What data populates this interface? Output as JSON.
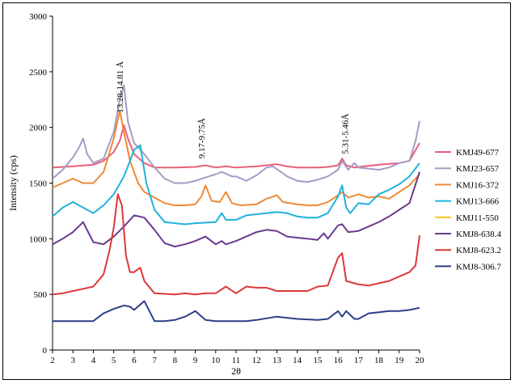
{
  "chart_data": {
    "type": "line",
    "title": "",
    "xlabel": "2θ",
    "ylabel": "Intensity (cps)",
    "xlim": [
      2,
      20
    ],
    "ylim": [
      0,
      3000
    ],
    "x_ticks": [
      2,
      3,
      4,
      5,
      6,
      7,
      8,
      9,
      10,
      11,
      12,
      13,
      14,
      15,
      16,
      17,
      18,
      19,
      20
    ],
    "y_ticks": [
      0,
      500,
      1000,
      1500,
      2000,
      2500,
      3000
    ],
    "grid": false,
    "legend_position": "right",
    "annotations": [
      {
        "text": "13.28-14.81 Å",
        "x": 5.45,
        "y": 2130
      },
      {
        "text": "9.17-9.75Å",
        "x": 9.45,
        "y": 1720
      },
      {
        "text": "5.31-5.46Å",
        "x": 16.5,
        "y": 1760
      }
    ],
    "series": [
      {
        "name": "KMJ49-677",
        "color": "#e8607a",
        "points": [
          [
            2,
            1640
          ],
          [
            3,
            1650
          ],
          [
            4,
            1665
          ],
          [
            4.5,
            1700
          ],
          [
            5,
            1780
          ],
          [
            5.3,
            1880
          ],
          [
            5.5,
            2020
          ],
          [
            5.7,
            1900
          ],
          [
            6,
            1760
          ],
          [
            6.5,
            1680
          ],
          [
            7,
            1640
          ],
          [
            8,
            1640
          ],
          [
            9,
            1645
          ],
          [
            9.5,
            1660
          ],
          [
            10,
            1640
          ],
          [
            10.5,
            1650
          ],
          [
            11,
            1640
          ],
          [
            12,
            1650
          ],
          [
            13,
            1670
          ],
          [
            13.5,
            1650
          ],
          [
            14,
            1640
          ],
          [
            15,
            1640
          ],
          [
            15.5,
            1645
          ],
          [
            16,
            1660
          ],
          [
            16.2,
            1720
          ],
          [
            16.4,
            1660
          ],
          [
            16.8,
            1640
          ],
          [
            17,
            1645
          ],
          [
            18,
            1665
          ],
          [
            19,
            1680
          ],
          [
            19.5,
            1700
          ],
          [
            20,
            1860
          ]
        ]
      },
      {
        "name": "KMJ23-657",
        "color": "#a59cc4",
        "points": [
          [
            2,
            1540
          ],
          [
            2.5,
            1620
          ],
          [
            3,
            1730
          ],
          [
            3.3,
            1820
          ],
          [
            3.5,
            1900
          ],
          [
            3.7,
            1760
          ],
          [
            4,
            1680
          ],
          [
            4.5,
            1720
          ],
          [
            5,
            1960
          ],
          [
            5.3,
            2250
          ],
          [
            5.5,
            2380
          ],
          [
            5.7,
            2050
          ],
          [
            6,
            1860
          ],
          [
            6.5,
            1760
          ],
          [
            7,
            1640
          ],
          [
            7.5,
            1540
          ],
          [
            8,
            1500
          ],
          [
            8.5,
            1500
          ],
          [
            9,
            1520
          ],
          [
            9.5,
            1550
          ],
          [
            10,
            1580
          ],
          [
            10.3,
            1600
          ],
          [
            10.8,
            1560
          ],
          [
            11,
            1560
          ],
          [
            11.5,
            1520
          ],
          [
            12,
            1570
          ],
          [
            12.5,
            1640
          ],
          [
            12.8,
            1650
          ],
          [
            13.2,
            1600
          ],
          [
            13.5,
            1560
          ],
          [
            14,
            1520
          ],
          [
            14.5,
            1510
          ],
          [
            15,
            1530
          ],
          [
            15.5,
            1560
          ],
          [
            16,
            1620
          ],
          [
            16.2,
            1700
          ],
          [
            16.5,
            1620
          ],
          [
            16.8,
            1680
          ],
          [
            17,
            1640
          ],
          [
            18,
            1620
          ],
          [
            18.5,
            1640
          ],
          [
            19,
            1680
          ],
          [
            19.5,
            1700
          ],
          [
            19.8,
            1880
          ],
          [
            20,
            2060
          ]
        ]
      },
      {
        "name": "KMJ16-372",
        "color": "#ee8a35",
        "points": [
          [
            2,
            1460
          ],
          [
            2.5,
            1500
          ],
          [
            3,
            1540
          ],
          [
            3.5,
            1500
          ],
          [
            4,
            1500
          ],
          [
            4.5,
            1600
          ],
          [
            5,
            1900
          ],
          [
            5.3,
            2150
          ],
          [
            5.5,
            1960
          ],
          [
            5.8,
            1700
          ],
          [
            6.2,
            1500
          ],
          [
            6.5,
            1420
          ],
          [
            7,
            1370
          ],
          [
            7.5,
            1320
          ],
          [
            8,
            1300
          ],
          [
            8.5,
            1300
          ],
          [
            9,
            1310
          ],
          [
            9.3,
            1380
          ],
          [
            9.5,
            1480
          ],
          [
            9.8,
            1340
          ],
          [
            10.2,
            1330
          ],
          [
            10.5,
            1420
          ],
          [
            10.8,
            1320
          ],
          [
            11.2,
            1300
          ],
          [
            12,
            1310
          ],
          [
            12.5,
            1360
          ],
          [
            13,
            1390
          ],
          [
            13.3,
            1330
          ],
          [
            14,
            1310
          ],
          [
            14.5,
            1300
          ],
          [
            15,
            1300
          ],
          [
            15.5,
            1330
          ],
          [
            16,
            1390
          ],
          [
            16.2,
            1420
          ],
          [
            16.5,
            1370
          ],
          [
            17,
            1400
          ],
          [
            17.5,
            1370
          ],
          [
            18,
            1380
          ],
          [
            18.5,
            1360
          ],
          [
            19,
            1420
          ],
          [
            19.5,
            1480
          ],
          [
            20,
            1580
          ]
        ]
      },
      {
        "name": "KMJ13-666",
        "color": "#1fb2df",
        "points": [
          [
            2,
            1200
          ],
          [
            2.5,
            1280
          ],
          [
            3,
            1330
          ],
          [
            3.5,
            1280
          ],
          [
            4,
            1230
          ],
          [
            4.5,
            1300
          ],
          [
            5,
            1400
          ],
          [
            5.5,
            1560
          ],
          [
            5.8,
            1700
          ],
          [
            6,
            1800
          ],
          [
            6.3,
            1840
          ],
          [
            6.6,
            1500
          ],
          [
            7,
            1260
          ],
          [
            7.5,
            1150
          ],
          [
            8,
            1140
          ],
          [
            8.5,
            1130
          ],
          [
            9,
            1140
          ],
          [
            10,
            1150
          ],
          [
            10.3,
            1230
          ],
          [
            10.5,
            1170
          ],
          [
            11,
            1170
          ],
          [
            11.5,
            1210
          ],
          [
            12,
            1220
          ],
          [
            13,
            1240
          ],
          [
            13.5,
            1230
          ],
          [
            14,
            1200
          ],
          [
            14.5,
            1190
          ],
          [
            15,
            1190
          ],
          [
            15.5,
            1230
          ],
          [
            16,
            1380
          ],
          [
            16.2,
            1480
          ],
          [
            16.4,
            1280
          ],
          [
            16.6,
            1230
          ],
          [
            17,
            1320
          ],
          [
            17.5,
            1310
          ],
          [
            18,
            1400
          ],
          [
            18.5,
            1440
          ],
          [
            19,
            1490
          ],
          [
            19.5,
            1560
          ],
          [
            20,
            1680
          ]
        ]
      },
      {
        "name": "KMJ11-550",
        "color": "#f4c81e",
        "points": []
      },
      {
        "name": "KMJ8-638.4",
        "color": "#6b3a8c",
        "points": [
          [
            2,
            950
          ],
          [
            2.5,
            1000
          ],
          [
            3,
            1060
          ],
          [
            3.5,
            1150
          ],
          [
            4,
            970
          ],
          [
            4.5,
            950
          ],
          [
            5,
            1020
          ],
          [
            5.5,
            1110
          ],
          [
            6,
            1210
          ],
          [
            6.5,
            1190
          ],
          [
            7,
            1080
          ],
          [
            7.5,
            960
          ],
          [
            8,
            930
          ],
          [
            8.5,
            950
          ],
          [
            9,
            980
          ],
          [
            9.5,
            1020
          ],
          [
            10,
            950
          ],
          [
            10.3,
            980
          ],
          [
            10.5,
            950
          ],
          [
            11,
            980
          ],
          [
            11.5,
            1020
          ],
          [
            12,
            1060
          ],
          [
            12.5,
            1080
          ],
          [
            13,
            1070
          ],
          [
            13.5,
            1020
          ],
          [
            14,
            1010
          ],
          [
            15,
            990
          ],
          [
            15.3,
            1050
          ],
          [
            15.5,
            1000
          ],
          [
            16,
            1120
          ],
          [
            16.2,
            1130
          ],
          [
            16.5,
            1060
          ],
          [
            17,
            1070
          ],
          [
            17.5,
            1110
          ],
          [
            18,
            1150
          ],
          [
            18.5,
            1200
          ],
          [
            19,
            1260
          ],
          [
            19.5,
            1320
          ],
          [
            20,
            1600
          ]
        ]
      },
      {
        "name": "KMJ8-623.2",
        "color": "#dd3838",
        "points": [
          [
            2,
            500
          ],
          [
            2.5,
            510
          ],
          [
            3,
            530
          ],
          [
            3.5,
            550
          ],
          [
            4,
            570
          ],
          [
            4.5,
            680
          ],
          [
            4.8,
            900
          ],
          [
            5,
            1100
          ],
          [
            5.2,
            1400
          ],
          [
            5.4,
            1300
          ],
          [
            5.6,
            850
          ],
          [
            5.8,
            700
          ],
          [
            6,
            700
          ],
          [
            6.3,
            740
          ],
          [
            6.5,
            620
          ],
          [
            7,
            510
          ],
          [
            8,
            500
          ],
          [
            8.5,
            510
          ],
          [
            9,
            500
          ],
          [
            9.5,
            510
          ],
          [
            10,
            510
          ],
          [
            10.5,
            570
          ],
          [
            11,
            510
          ],
          [
            11.5,
            570
          ],
          [
            12,
            560
          ],
          [
            12.5,
            560
          ],
          [
            13,
            530
          ],
          [
            13.5,
            530
          ],
          [
            14,
            530
          ],
          [
            14.5,
            530
          ],
          [
            15,
            570
          ],
          [
            15.5,
            580
          ],
          [
            16,
            830
          ],
          [
            16.2,
            870
          ],
          [
            16.4,
            620
          ],
          [
            16.8,
            600
          ],
          [
            17,
            590
          ],
          [
            17.5,
            580
          ],
          [
            18,
            600
          ],
          [
            18.5,
            620
          ],
          [
            19,
            660
          ],
          [
            19.5,
            700
          ],
          [
            19.8,
            760
          ],
          [
            20,
            1030
          ]
        ]
      },
      {
        "name": "KMJ8-306.7",
        "color": "#2b3f86",
        "points": [
          [
            2,
            260
          ],
          [
            3,
            260
          ],
          [
            4,
            260
          ],
          [
            4.5,
            330
          ],
          [
            5,
            370
          ],
          [
            5.5,
            400
          ],
          [
            5.8,
            390
          ],
          [
            6,
            360
          ],
          [
            6.5,
            440
          ],
          [
            7,
            260
          ],
          [
            7.5,
            260
          ],
          [
            8,
            270
          ],
          [
            8.5,
            300
          ],
          [
            9,
            350
          ],
          [
            9.5,
            270
          ],
          [
            10,
            260
          ],
          [
            10.5,
            260
          ],
          [
            11,
            260
          ],
          [
            11.5,
            260
          ],
          [
            12,
            270
          ],
          [
            13,
            300
          ],
          [
            14,
            280
          ],
          [
            15,
            270
          ],
          [
            15.5,
            280
          ],
          [
            16,
            350
          ],
          [
            16.2,
            300
          ],
          [
            16.4,
            350
          ],
          [
            16.8,
            280
          ],
          [
            17,
            280
          ],
          [
            17.5,
            330
          ],
          [
            18,
            340
          ],
          [
            18.5,
            350
          ],
          [
            19,
            350
          ],
          [
            19.5,
            360
          ],
          [
            20,
            380
          ]
        ]
      }
    ]
  }
}
